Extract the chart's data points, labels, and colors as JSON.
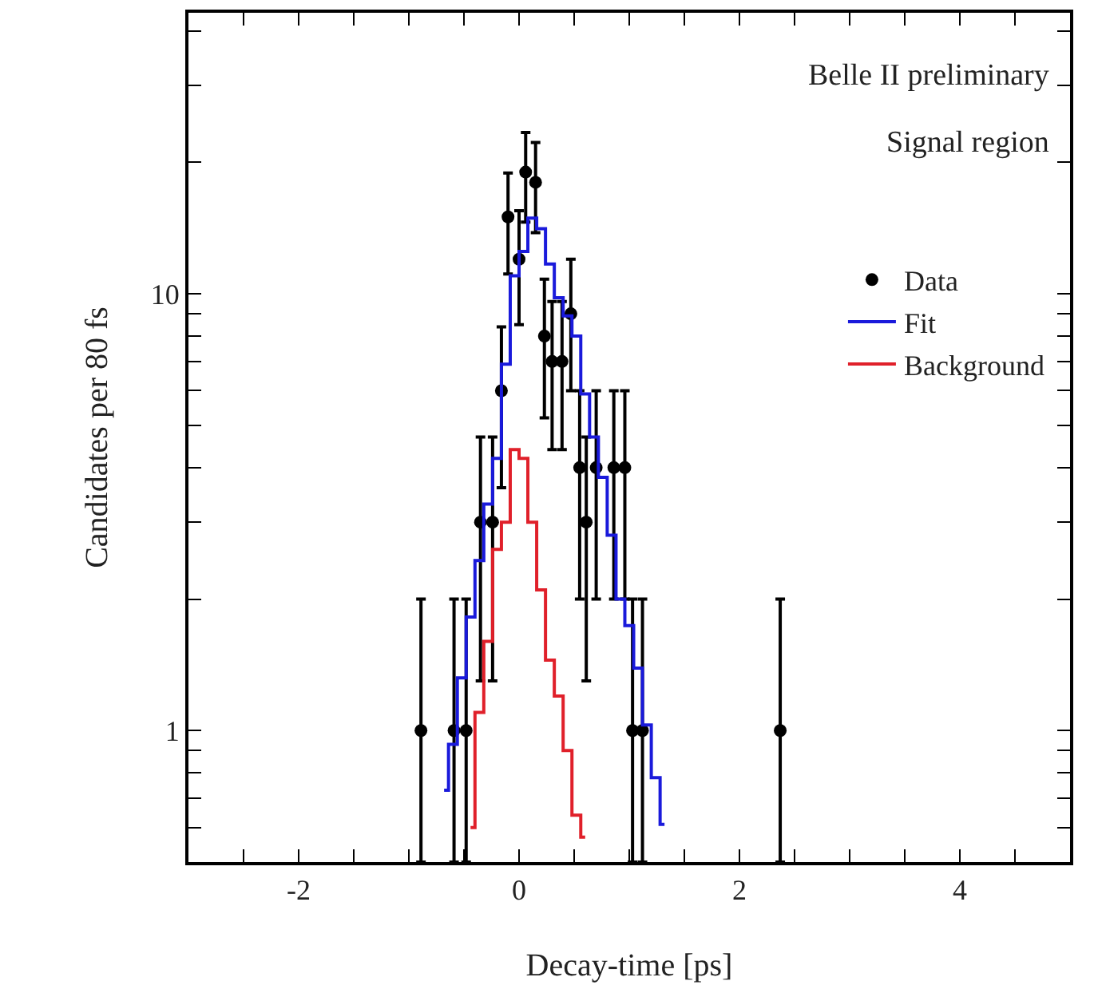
{
  "chart_data": {
    "type": "scatter",
    "xlabel": "Decay-time [ps]",
    "ylabel": "Candidates per 80 fs",
    "annotations": [
      "Belle II preliminary",
      "Signal region"
    ],
    "log": "y",
    "xlim": [
      -3,
      5
    ],
    "ylim": [
      0.5,
      44
    ],
    "xticks": [
      {
        "value": -2.5,
        "label": null
      },
      -2,
      {
        "value": -1.5,
        "label": null
      },
      {
        "value": -1,
        "label": null
      },
      {
        "value": -0.5,
        "label": null
      },
      0,
      {
        "value": 0.5,
        "label": null
      },
      {
        "value": 1,
        "label": null
      },
      {
        "value": 1.5,
        "label": null
      },
      2,
      {
        "value": 2.5,
        "label": null
      },
      {
        "value": 3,
        "label": null
      },
      {
        "value": 3.5,
        "label": null
      },
      4,
      {
        "value": 4.5,
        "label": null
      }
    ],
    "yticks": [
      {
        "value": 0.6,
        "label": null
      },
      {
        "value": 0.7,
        "label": null
      },
      {
        "value": 0.8,
        "label": null
      },
      {
        "value": 0.9,
        "label": null
      },
      1,
      {
        "value": 2,
        "label": null
      },
      {
        "value": 3,
        "label": null
      },
      {
        "value": 4,
        "label": null
      },
      {
        "value": 5,
        "label": null
      },
      {
        "value": 6,
        "label": null
      },
      {
        "value": 7,
        "label": null
      },
      {
        "value": 8,
        "label": null
      },
      {
        "value": 9,
        "label": null
      },
      10,
      {
        "value": 20,
        "label": null
      },
      {
        "value": 30,
        "label": null
      },
      {
        "value": 40,
        "label": null
      }
    ],
    "grid": false,
    "legend": "top right",
    "series": [
      {
        "name": "Data",
        "color": "#000000",
        "marker": "circle",
        "x": [
          -0.89,
          -0.59,
          -0.48,
          -0.35,
          -0.24,
          -0.16,
          -0.1,
          0.0,
          0.06,
          0.15,
          0.23,
          0.3,
          0.39,
          0.47,
          0.55,
          0.61,
          0.7,
          0.86,
          0.96,
          1.03,
          1.12,
          2.37
        ],
        "values": [
          1,
          1,
          1,
          3,
          3,
          6,
          15,
          12,
          19,
          18,
          8,
          7,
          7,
          9,
          4,
          3,
          4,
          4,
          4,
          1,
          1,
          1
        ],
        "errors": [
          [
            0.5,
            2
          ],
          [
            0.5,
            2
          ],
          [
            0.5,
            2
          ],
          1.7,
          1.7,
          2.4,
          3.9,
          3.5,
          4.4,
          4.2,
          2.8,
          2.6,
          2.6,
          3,
          2,
          1.7,
          2,
          2,
          2,
          [
            0.5,
            2
          ],
          [
            0.5,
            2
          ],
          [
            0.5,
            2
          ]
        ]
      },
      {
        "name": "Fit",
        "type": "step",
        "color": "#1a1adb",
        "x": [
          -0.68,
          -0.6,
          -0.52,
          -0.44,
          -0.36,
          -0.28,
          -0.2,
          -0.12,
          -0.04,
          0.04,
          0.12,
          0.2,
          0.28,
          0.36,
          0.44,
          0.52,
          0.6,
          0.68,
          0.76,
          0.84,
          0.92,
          1.0,
          1.08,
          1.16,
          1.24,
          1.32
        ],
        "values": [
          0.73,
          0.93,
          1.32,
          1.82,
          2.45,
          3.3,
          4.2,
          6.9,
          11,
          12.5,
          14.9,
          14.1,
          11.7,
          9.8,
          8.9,
          8.0,
          5.9,
          4.7,
          3.8,
          2.8,
          2.0,
          1.74,
          1.39,
          1.03,
          0.78,
          0.61
        ]
      },
      {
        "name": "Background",
        "type": "step",
        "color": "#e0202a",
        "x": [
          -0.44,
          -0.36,
          -0.28,
          -0.2,
          -0.12,
          -0.04,
          0.04,
          0.12,
          0.2,
          0.28,
          0.36,
          0.44,
          0.52,
          0.6
        ],
        "values": [
          0.6,
          1.1,
          1.6,
          2.6,
          3.0,
          4.4,
          4.2,
          3.0,
          2.1,
          1.45,
          1.2,
          0.9,
          0.64,
          0.57
        ]
      }
    ]
  }
}
